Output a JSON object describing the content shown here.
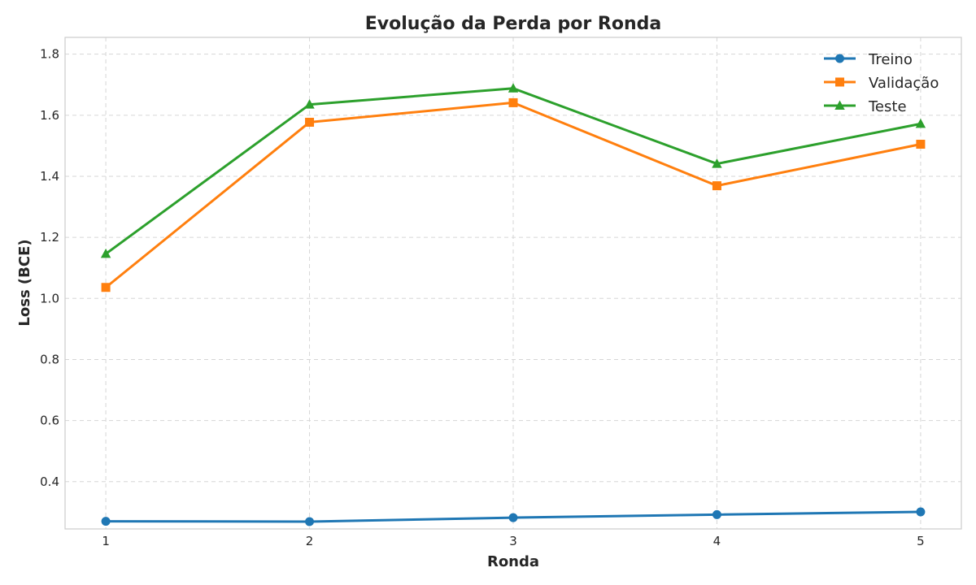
{
  "chart_data": {
    "type": "line",
    "title": "Evolução da Perda por Ronda",
    "xlabel": "Ronda",
    "ylabel": "Loss (BCE)",
    "x": [
      1,
      2,
      3,
      4,
      5
    ],
    "xticks": [
      "1",
      "2",
      "3",
      "4",
      "5"
    ],
    "xlim": [
      0.8,
      5.2
    ],
    "ylim": [
      0.245,
      1.855
    ],
    "yticks": [
      "0.4",
      "0.6",
      "0.8",
      "1.0",
      "1.2",
      "1.4",
      "1.6",
      "1.8"
    ],
    "grid": true,
    "legend_position": "top-right",
    "series": [
      {
        "name": "Treino",
        "values": [
          0.27,
          0.269,
          0.282,
          0.292,
          0.301
        ],
        "color": "#1f77b4",
        "marker": "circle"
      },
      {
        "name": "Validação",
        "values": [
          1.036,
          1.577,
          1.641,
          1.369,
          1.505
        ],
        "color": "#ff7f0e",
        "marker": "square"
      },
      {
        "name": "Teste",
        "values": [
          1.146,
          1.635,
          1.688,
          1.441,
          1.572
        ],
        "color": "#2ca02c",
        "marker": "triangle"
      }
    ]
  }
}
